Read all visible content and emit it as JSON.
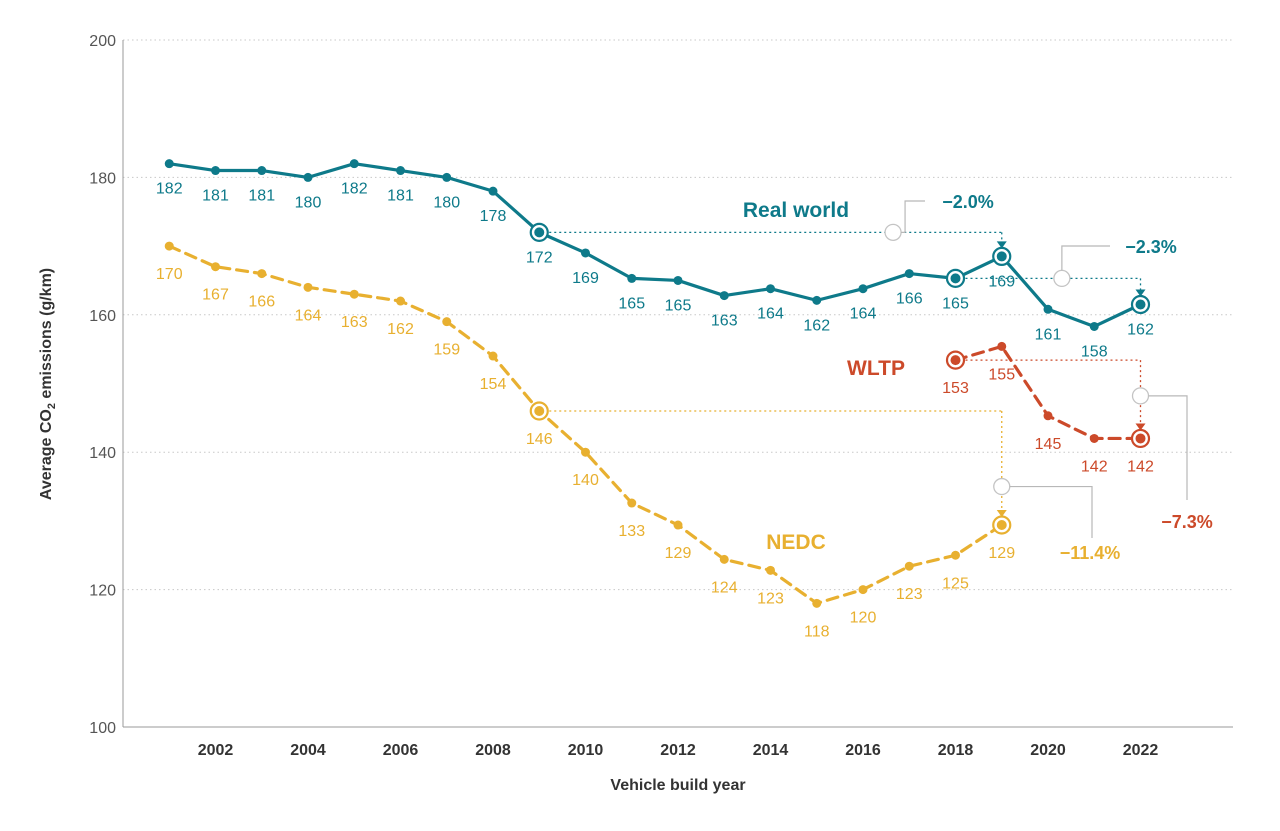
{
  "chart_data": {
    "type": "line",
    "xlabel": "Vehicle build year",
    "ylabel_prefix": "Average CO",
    "ylabel_sub": "2",
    "ylabel_suffix": " emissions (g/km)",
    "ylim": [
      100,
      200
    ],
    "xlim": [
      2000,
      2024
    ],
    "yticks": [
      100,
      120,
      140,
      160,
      180,
      200
    ],
    "xticks": [
      2002,
      2004,
      2006,
      2008,
      2010,
      2012,
      2014,
      2016,
      2018,
      2020,
      2022
    ],
    "grid": true,
    "series": [
      {
        "name": "Real world",
        "color": "#0e7a8a",
        "style": "solid",
        "x": [
          2001,
          2002,
          2003,
          2004,
          2005,
          2006,
          2007,
          2008,
          2009,
          2010,
          2011,
          2012,
          2013,
          2014,
          2015,
          2016,
          2017,
          2018,
          2019,
          2020,
          2021,
          2022
        ],
        "values": [
          182,
          181,
          181,
          180,
          182,
          181,
          180,
          178,
          172,
          169,
          165.3,
          165,
          162.8,
          163.8,
          162.1,
          163.8,
          166,
          165.3,
          168.5,
          160.8,
          158.3,
          161.5
        ],
        "labels": [
          "182",
          "181",
          "181",
          "180",
          "182",
          "181",
          "180",
          "178",
          "172",
          "169",
          "165",
          "165",
          "163",
          "164",
          "162",
          "164",
          "166",
          "165",
          "169",
          "161",
          "158",
          "162"
        ]
      },
      {
        "name": "NEDC",
        "color": "#e8b030",
        "style": "dashed",
        "x": [
          2001,
          2002,
          2003,
          2004,
          2005,
          2006,
          2007,
          2008,
          2009,
          2010,
          2011,
          2012,
          2013,
          2014,
          2015,
          2016,
          2017,
          2018,
          2019
        ],
        "values": [
          170,
          167,
          166,
          164,
          163,
          162,
          159,
          154,
          146,
          140,
          132.6,
          129.4,
          124.4,
          122.8,
          118,
          120,
          123.4,
          125,
          129.4
        ],
        "labels": [
          "170",
          "167",
          "166",
          "164",
          "163",
          "162",
          "159",
          "154",
          "146",
          "140",
          "133",
          "129",
          "124",
          "123",
          "118",
          "120",
          "123",
          "125",
          "129"
        ]
      },
      {
        "name": "WLTP",
        "color": "#cc4a2a",
        "style": "dashed",
        "x": [
          2018,
          2019,
          2020,
          2021,
          2022
        ],
        "values": [
          153.4,
          155.4,
          145.3,
          142,
          142
        ],
        "labels": [
          "153",
          "155",
          "145",
          "142",
          "142"
        ]
      }
    ],
    "annotations": [
      {
        "series": "Real world",
        "from_x": 2009,
        "to_x": 2019,
        "text": "−2.0%",
        "color": "#0e7a8a"
      },
      {
        "series": "Real world",
        "from_x": 2018,
        "to_x": 2022,
        "text": "−2.3%",
        "color": "#0e7a8a"
      },
      {
        "series": "NEDC",
        "from_x": 2009,
        "to_x": 2019,
        "text": "−11.4%",
        "color": "#e8b030"
      },
      {
        "series": "WLTP",
        "from_x": 2018,
        "to_x": 2022,
        "text": "−7.3%",
        "color": "#cc4a2a"
      }
    ]
  }
}
